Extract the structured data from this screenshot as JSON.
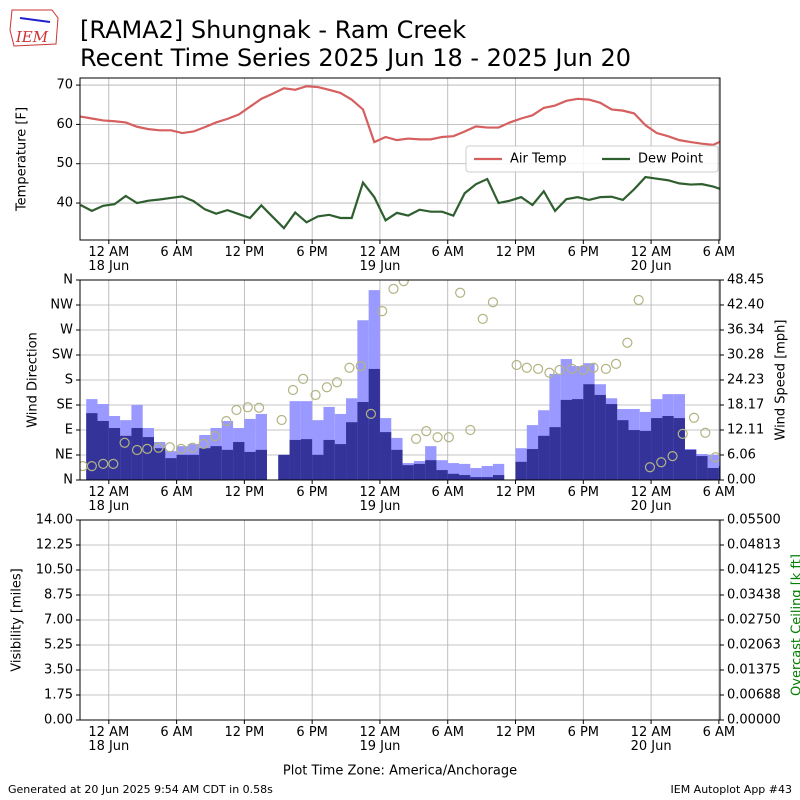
{
  "logo": "IEM",
  "title": "[RAMA2] Shungnak - Ram Creek",
  "subtitle": "Recent Time Series 2025 Jun 18 - 2025 Jun 20",
  "footer_left": "Generated at 20 Jun 2025 9:54 AM CDT in 0.58s",
  "footer_right": "IEM Autoplot App #43",
  "chart_data": [
    {
      "type": "line",
      "ylabel": "Temperature [F]",
      "grid": true,
      "legend": "center right",
      "xlim": [
        -2.55,
        54.1
      ],
      "xticks": [
        {
          "value": 0,
          "label": "12 AM\n18 Jun"
        },
        {
          "value": 6,
          "label": "6 AM"
        },
        {
          "value": 12,
          "label": "12 PM"
        },
        {
          "value": 18,
          "label": "6 PM"
        },
        {
          "value": 24,
          "label": "12 AM\n19 Jun"
        },
        {
          "value": 30,
          "label": "6 AM"
        },
        {
          "value": 36,
          "label": "12 PM"
        },
        {
          "value": 42,
          "label": "6 PM"
        },
        {
          "value": 48,
          "label": "12 AM\n20 Jun"
        },
        {
          "value": 54,
          "label": "6 AM"
        }
      ],
      "ylim": [
        30.6,
        71.8
      ],
      "yticks": [
        40,
        50,
        60,
        70
      ],
      "x": [
        -2.5,
        -1.5,
        -0.5,
        0.5,
        1.5,
        2.5,
        3.5,
        4.5,
        5.5,
        6.5,
        7.5,
        8.5,
        9.5,
        10.5,
        11.5,
        12.5,
        13.5,
        14.5,
        15.5,
        16.5,
        17.5,
        18.5,
        19.5,
        20.5,
        21.5,
        22.5,
        23.5,
        24.5,
        25.5,
        26.5,
        27.5,
        28.5,
        29.5,
        30.5,
        31.5,
        32.5,
        33.5,
        34.5,
        35.5,
        36.5,
        37.5,
        38.5,
        39.5,
        40.5,
        41.5,
        42.5,
        43.5,
        44.5,
        45.5,
        46.5,
        47.5,
        48.5,
        49.5,
        50.5,
        51.5,
        52.5,
        53.5,
        54.1
      ],
      "series": [
        {
          "name": "Air Temp",
          "color": "#d65f5f",
          "values": [
            62,
            61.5,
            61,
            60.8,
            60.5,
            59.4,
            58.8,
            58.5,
            58.5,
            57.8,
            58.2,
            59.3,
            60.5,
            61.4,
            62.5,
            64.5,
            66.5,
            67.8,
            69.2,
            68.8,
            69.7,
            69.5,
            68.8,
            68,
            66.3,
            63.8,
            55.5,
            56.8,
            56,
            56.4,
            56.2,
            56.2,
            56.8,
            57,
            58.2,
            59.5,
            59.2,
            59.2,
            60.5,
            61.5,
            62.3,
            64.2,
            64.8,
            66,
            66.5,
            66.3,
            65.5,
            63.8,
            63.5,
            62.8,
            59.8,
            57.8,
            57,
            56,
            55.5,
            55.1,
            54.8,
            55.6
          ]
        },
        {
          "name": "Dew Point",
          "color": "#2f5f2f",
          "values": [
            39.5,
            38,
            39.3,
            39.7,
            41.8,
            40,
            40.6,
            40.9,
            41.3,
            41.7,
            40.5,
            38.4,
            37.3,
            38.2,
            37.2,
            36.2,
            39.4,
            36.5,
            33.6,
            37.6,
            35.1,
            36.6,
            37,
            36.2,
            36.2,
            45.2,
            41.5,
            35.6,
            37.5,
            36.8,
            38.3,
            37.8,
            37.8,
            36.8,
            42.5,
            44.8,
            46.1,
            40,
            40.6,
            41.5,
            39.5,
            43,
            38,
            41,
            41.5,
            40.8,
            41.5,
            41.6,
            40.8,
            43.5,
            46.6,
            46.2,
            45.8,
            45,
            44.7,
            44.8,
            44.2,
            43.6
          ]
        }
      ]
    },
    {
      "type": "bar",
      "ylabel": "Wind Direction",
      "y2label": "Wind Speed [mph]",
      "grid": true,
      "xlim": [
        -2.55,
        54.1
      ],
      "xticks": [
        {
          "value": 0,
          "label": "12 AM\n18 Jun"
        },
        {
          "value": 6,
          "label": "6 AM"
        },
        {
          "value": 12,
          "label": "12 PM"
        },
        {
          "value": 18,
          "label": "6 PM"
        },
        {
          "value": 24,
          "label": "12 AM\n19 Jun"
        },
        {
          "value": 30,
          "label": "6 AM"
        },
        {
          "value": 36,
          "label": "12 PM"
        },
        {
          "value": 42,
          "label": "6 PM"
        },
        {
          "value": 48,
          "label": "12 AM\n20 Jun"
        },
        {
          "value": 54,
          "label": "6 AM"
        }
      ],
      "ylim": [
        0,
        360
      ],
      "yticks": [
        {
          "value": 0,
          "label": "N"
        },
        {
          "value": 45,
          "label": "NE"
        },
        {
          "value": 90,
          "label": "E"
        },
        {
          "value": 135,
          "label": "SE"
        },
        {
          "value": 180,
          "label": "S"
        },
        {
          "value": 225,
          "label": "SW"
        },
        {
          "value": 270,
          "label": "W"
        },
        {
          "value": 315,
          "label": "NW"
        },
        {
          "value": 360,
          "label": "N"
        }
      ],
      "y2lim": [
        0,
        48.45
      ],
      "y2ticks": [
        {
          "value": 0,
          "label": "0.00"
        },
        {
          "value": 6.06,
          "label": "6.06"
        },
        {
          "value": 12.11,
          "label": "12.11"
        },
        {
          "value": 18.17,
          "label": "18.17"
        },
        {
          "value": 24.23,
          "label": "24.23"
        },
        {
          "value": 30.28,
          "label": "30.28"
        },
        {
          "value": 36.34,
          "label": "36.34"
        },
        {
          "value": 42.4,
          "label": "42.40"
        },
        {
          "value": 48.45,
          "label": "48.45"
        }
      ],
      "x": [
        -2,
        -1,
        0,
        1,
        2,
        3,
        4,
        5,
        6,
        7,
        8,
        9,
        10,
        11,
        12,
        13,
        14,
        15,
        16,
        17,
        18,
        19,
        20,
        21,
        22,
        23,
        24,
        25,
        26,
        27,
        28,
        29,
        30,
        31,
        32,
        33,
        34,
        35,
        36,
        37,
        38,
        39,
        40,
        41,
        42,
        43,
        44,
        45,
        46,
        47,
        48,
        49,
        50,
        51,
        52,
        53,
        54
      ],
      "series": [
        {
          "type": "bar",
          "axis": "y2",
          "color": "#9999ff",
          "values": [
            19.6,
            18.4,
            15.5,
            14.5,
            18.2,
            12.6,
            9.2,
            7.0,
            8.2,
            8.7,
            10.9,
            12.6,
            14.3,
            12.6,
            14.8,
            16.0,
            null,
            6.1,
            19.1,
            19.1,
            14.5,
            17.7,
            16.0,
            19.8,
            38.7,
            46.0,
            15.0,
            10.2,
            4.1,
            4.6,
            8.2,
            4.8,
            4.1,
            3.9,
            2.9,
            3.4,
            3.9,
            null,
            7.7,
            13.3,
            16.9,
            25.7,
            29.3,
            27.6,
            28.3,
            23.2,
            19.8,
            17.2,
            17.2,
            16.5,
            19.6,
            20.8,
            20.8,
            7.5,
            6.3,
            6.1,
            4.6
          ]
        },
        {
          "type": "bar",
          "axis": "y2",
          "color": "#333399",
          "values": [
            16.2,
            14.3,
            12.6,
            10.7,
            12.6,
            10.4,
            7.7,
            5.3,
            6.1,
            6.1,
            7.7,
            8.2,
            7.3,
            9.2,
            6.8,
            7.3,
            null,
            6.1,
            9.7,
            9.9,
            6.1,
            9.7,
            8.7,
            14.0,
            18.9,
            26.9,
            11.6,
            7.3,
            3.6,
            3.9,
            4.8,
            2.4,
            1.5,
            1.2,
            0.7,
            0.7,
            1.2,
            null,
            4.4,
            7.5,
            10.7,
            12.8,
            19.4,
            19.6,
            23.2,
            20.6,
            18.4,
            14.5,
            12.1,
            11.9,
            15.0,
            15.5,
            15.0,
            7.3,
            5.8,
            2.9,
            3.4
          ]
        },
        {
          "type": "scatter",
          "color": "#b3b383",
          "x": [
            -2.3,
            -1.5,
            -0.5,
            0.4,
            1.4,
            2.5,
            3.4,
            4.4,
            5.4,
            6.4,
            7.4,
            8.4,
            9.4,
            10.4,
            11.3,
            12.3,
            13.3,
            15.3,
            16.3,
            17.2,
            18.3,
            19.3,
            20.2,
            21.3,
            22.3,
            23.2,
            24.2,
            25.2,
            26.1,
            27.2,
            28.1,
            29.1,
            30.1,
            31.1,
            32.0,
            33.1,
            34.0,
            36.1,
            37.0,
            38.0,
            39.0,
            39.9,
            41.0,
            42.0,
            42.9,
            44.0,
            44.9,
            45.9,
            46.9,
            47.9,
            48.9,
            49.9,
            50.8,
            51.8,
            52.8,
            53.7
          ],
          "values": [
            25,
            25,
            29,
            29,
            67,
            54,
            56,
            58,
            59,
            56,
            58,
            65,
            79,
            106,
            126,
            131,
            130,
            108,
            162,
            182,
            153,
            167,
            176,
            202,
            205,
            119,
            304,
            344,
            358,
            74,
            88,
            77,
            77,
            337,
            90,
            290,
            320,
            207,
            202,
            200,
            193,
            198,
            200,
            198,
            202,
            200,
            209,
            247,
            324,
            23,
            32,
            43,
            83,
            112,
            85,
            41
          ]
        }
      ]
    },
    {
      "type": "line",
      "ylabel": "Visibility [miles]",
      "y2label": "Overcast Ceiling [k ft]",
      "y2label_color": "#008000",
      "grid": true,
      "xlabel": "Plot Time Zone: America/Anchorage",
      "xlim": [
        -2.55,
        54.1
      ],
      "xticks": [
        {
          "value": 0,
          "label": "12 AM\n18 Jun"
        },
        {
          "value": 6,
          "label": "6 AM"
        },
        {
          "value": 12,
          "label": "12 PM"
        },
        {
          "value": 18,
          "label": "6 PM"
        },
        {
          "value": 24,
          "label": "12 AM\n19 Jun"
        },
        {
          "value": 30,
          "label": "6 AM"
        },
        {
          "value": 36,
          "label": "12 PM"
        },
        {
          "value": 42,
          "label": "6 PM"
        },
        {
          "value": 48,
          "label": "12 AM\n20 Jun"
        },
        {
          "value": 54,
          "label": "6 AM"
        }
      ],
      "ylim": [
        0,
        14
      ],
      "yticks": [
        {
          "value": 0,
          "label": "0.00"
        },
        {
          "value": 1.75,
          "label": "1.75"
        },
        {
          "value": 3.5,
          "label": "3.50"
        },
        {
          "value": 5.25,
          "label": "5.25"
        },
        {
          "value": 7,
          "label": "7.00"
        },
        {
          "value": 8.75,
          "label": "8.75"
        },
        {
          "value": 10.5,
          "label": "10.50"
        },
        {
          "value": 12.25,
          "label": "12.25"
        },
        {
          "value": 14,
          "label": "14.00"
        }
      ],
      "y2lim": [
        0,
        0.055
      ],
      "y2ticks": [
        {
          "value": 0,
          "label": "0.00000"
        },
        {
          "value": 0.006875,
          "label": "0.00688"
        },
        {
          "value": 0.01375,
          "label": "0.01375"
        },
        {
          "value": 0.020625,
          "label": "0.02063"
        },
        {
          "value": 0.0275,
          "label": "0.02750"
        },
        {
          "value": 0.034375,
          "label": "0.03438"
        },
        {
          "value": 0.04125,
          "label": "0.04125"
        },
        {
          "value": 0.048125,
          "label": "0.04813"
        },
        {
          "value": 0.055,
          "label": "0.05500"
        }
      ],
      "series": []
    }
  ]
}
